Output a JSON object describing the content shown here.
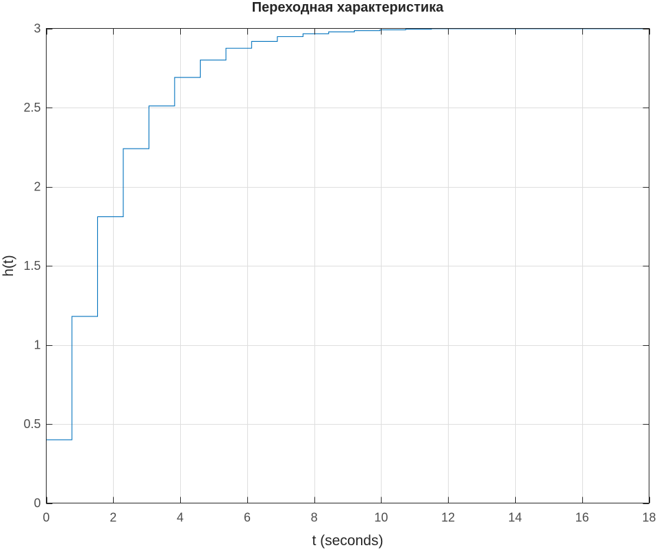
{
  "chart_data": {
    "type": "line",
    "title": "Переходная характеристика",
    "xlabel": "t (seconds)",
    "ylabel": "h(t)",
    "xlim": [
      0,
      18
    ],
    "ylim": [
      0,
      3
    ],
    "x_ticks": [
      0,
      2,
      4,
      6,
      8,
      10,
      12,
      14,
      16,
      18
    ],
    "x_tick_labels": [
      "0",
      "2",
      "4",
      "6",
      "8",
      "10",
      "12",
      "14",
      "16",
      "18"
    ],
    "y_ticks": [
      0,
      0.5,
      1,
      1.5,
      2,
      2.5,
      3
    ],
    "y_tick_labels": [
      "0",
      "0.5",
      "1",
      "1.5",
      "2",
      "2.5",
      "3"
    ],
    "grid": true,
    "legend": "none",
    "line_style": "step",
    "series": [
      {
        "x": [
          0,
          0.767,
          1.533,
          2.3,
          3.067,
          3.833,
          4.6,
          5.367,
          6.133,
          6.9,
          7.667,
          8.433,
          9.2,
          9.967,
          10.733,
          11.5,
          18
        ],
        "y": [
          0.4,
          1.18,
          1.81,
          2.24,
          2.51,
          2.69,
          2.8,
          2.875,
          2.918,
          2.948,
          2.966,
          2.978,
          2.986,
          2.991,
          2.995,
          2.998,
          2.998
        ]
      }
    ],
    "colors": {
      "line": "#0072bd",
      "grid": "#dedede",
      "axes": "#262626",
      "tick_text": "#4d4d4d"
    }
  }
}
